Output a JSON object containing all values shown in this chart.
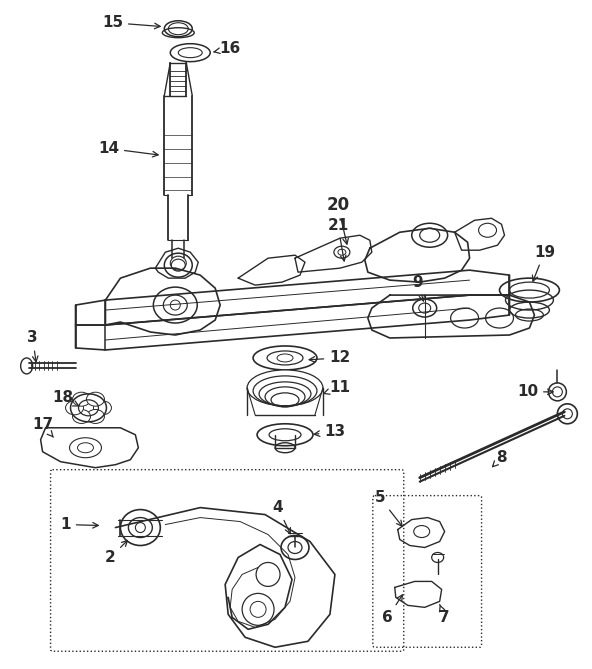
{
  "bg_color": "#ffffff",
  "line_color": "#2a2a2a",
  "fig_width": 5.92,
  "fig_height": 6.69,
  "dpi": 100
}
